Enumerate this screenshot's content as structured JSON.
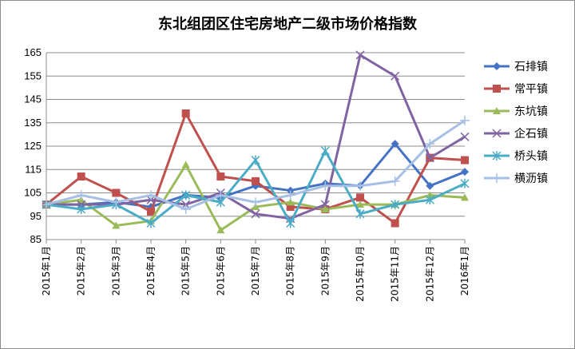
{
  "chart_data": {
    "type": "line",
    "title": "东北组团区住宅房地产二级市场价格指数",
    "xlabel": "",
    "ylabel": "",
    "ylim": [
      85,
      165
    ],
    "yticks": [
      85,
      95,
      105,
      115,
      125,
      135,
      145,
      155,
      165
    ],
    "grid": true,
    "legend_position": "right",
    "categories": [
      "2015年1月",
      "2015年2月",
      "2015年3月",
      "2015年4月",
      "2015年5月",
      "2015年6月",
      "2015年7月",
      "2015年8月",
      "2015年9月",
      "2015年10月",
      "2015年11月",
      "2015年12月",
      "2016年1月"
    ],
    "series": [
      {
        "name": "石排镇",
        "color": "#4472c4",
        "marker": "diamond",
        "values": [
          100,
          100,
          101,
          99,
          104,
          103,
          108,
          106,
          109,
          108,
          126,
          108,
          114
        ]
      },
      {
        "name": "常平镇",
        "color": "#c0504d",
        "marker": "square",
        "values": [
          100,
          112,
          105,
          97,
          139,
          112,
          110,
          99,
          98,
          103,
          92,
          120,
          119
        ]
      },
      {
        "name": "东坑镇",
        "color": "#9bbb59",
        "marker": "triangle",
        "values": [
          100,
          102,
          91,
          93,
          117,
          89,
          99,
          101,
          98,
          100,
          100,
          104,
          103
        ]
      },
      {
        "name": "企石镇",
        "color": "#8064a2",
        "marker": "x",
        "values": [
          100,
          100,
          100,
          102,
          100,
          105,
          96,
          94,
          100,
          164,
          155,
          120,
          129
        ]
      },
      {
        "name": "桥头镇",
        "color": "#4bacc6",
        "marker": "star",
        "values": [
          100,
          98,
          100,
          92,
          104,
          101,
          119,
          92,
          123,
          96,
          100,
          102,
          109
        ]
      },
      {
        "name": "横沥镇",
        "color": "#a6bfe4",
        "marker": "plus",
        "values": [
          100,
          104,
          101,
          104,
          98,
          104,
          101,
          104,
          108,
          108,
          110,
          126,
          136
        ]
      }
    ]
  }
}
